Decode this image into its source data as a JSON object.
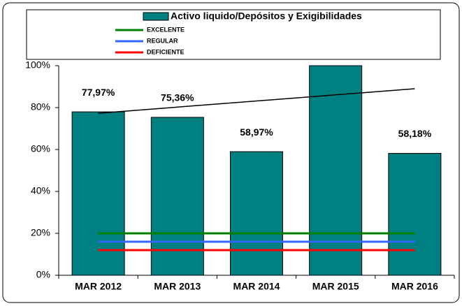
{
  "chart_data": {
    "type": "bar",
    "categories": [
      "MAR 2012",
      "MAR 2013",
      "MAR 2014",
      "MAR 2015",
      "MAR 2016"
    ],
    "series": [
      {
        "name": "Activo liquido/Depósitos y Exigibilidades",
        "color": "#008080",
        "values": [
          77.97,
          75.36,
          58.97,
          100,
          58.18
        ],
        "value_labels": [
          "77,97%",
          "75,36%",
          "58,97%",
          null,
          "58,18%"
        ]
      }
    ],
    "reference_lines": [
      {
        "name": "EXCELENTE",
        "color": "#008000",
        "value": 20
      },
      {
        "name": "REGULAR",
        "color": "#3366ff",
        "value": 16
      },
      {
        "name": "DEFICIENTE",
        "color": "#ff0000",
        "value": 12
      }
    ],
    "trendline": {
      "color": "#000000",
      "values": [
        77.3,
        89
      ]
    },
    "ylim": [
      0,
      100
    ],
    "yticks": [
      {
        "value": 0,
        "label": "0%"
      },
      {
        "value": 20,
        "label": "20%"
      },
      {
        "value": 40,
        "label": "40%"
      },
      {
        "value": 60,
        "label": "60%"
      },
      {
        "value": 80,
        "label": "80%"
      },
      {
        "value": 100,
        "label": "100%"
      }
    ]
  }
}
